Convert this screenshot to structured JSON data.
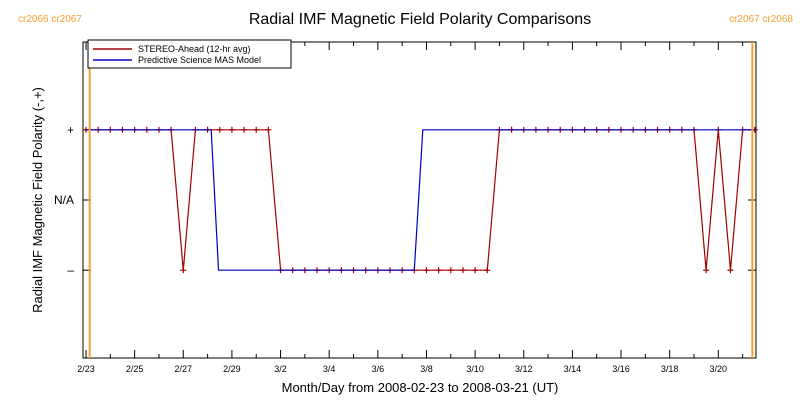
{
  "chart_data": {
    "type": "line",
    "title": "Radial IMF Magnetic Field Polarity Comparisons",
    "xlabel": "Month/Day from 2008-02-23 to 2008-03-21 (UT)",
    "ylabel": "Radial IMF Magnetic Field Polarity (-,+)",
    "x_start_date": "2008-02-23",
    "xlim_days": [
      0,
      27.55
    ],
    "ylim": [
      -2.25,
      2.25
    ],
    "x_ticks": [
      {
        "day": 0,
        "label": "2/23"
      },
      {
        "day": 2,
        "label": "2/25"
      },
      {
        "day": 4,
        "label": "2/27"
      },
      {
        "day": 6,
        "label": "2/29"
      },
      {
        "day": 8,
        "label": "3/2"
      },
      {
        "day": 10,
        "label": "3/4"
      },
      {
        "day": 12,
        "label": "3/6"
      },
      {
        "day": 14,
        "label": "3/8"
      },
      {
        "day": 16,
        "label": "3/10"
      },
      {
        "day": 18,
        "label": "3/12"
      },
      {
        "day": 20,
        "label": "3/14"
      },
      {
        "day": 22,
        "label": "3/16"
      },
      {
        "day": 24,
        "label": "3/18"
      },
      {
        "day": 26,
        "label": "3/20"
      }
    ],
    "y_ticks": [
      {
        "value": 1,
        "label": "+"
      },
      {
        "value": 0,
        "label": "N/A"
      },
      {
        "value": -1,
        "label": "–"
      }
    ],
    "carrington_markers": [
      {
        "day": 0.15,
        "label": "cr2066 cr2067",
        "side": "left",
        "color": "#f5a030"
      },
      {
        "day": 27.4,
        "label": "cr2067 cr2068",
        "side": "right",
        "color": "#f5a030"
      }
    ],
    "legend": {
      "position": "top-left",
      "entries": [
        {
          "name": "STEREO-Ahead (12-hr avg)",
          "color": "#a00000"
        },
        {
          "name": "Predictive Science MAS Model",
          "color": "#0000c8"
        }
      ]
    },
    "series": [
      {
        "name": "STEREO-Ahead (12-hr avg)",
        "color": "#a00000",
        "markers": true,
        "x": [
          0,
          0.5,
          1,
          1.5,
          2,
          2.5,
          3,
          3.5,
          4,
          4.5,
          5,
          5.5,
          6,
          6.5,
          7,
          7.5,
          8,
          8.5,
          9,
          9.5,
          10,
          10.5,
          11,
          11.5,
          12,
          12.5,
          13,
          13.5,
          14,
          14.5,
          15,
          15.5,
          16,
          16.5,
          17,
          17.5,
          18,
          18.5,
          19,
          19.5,
          20,
          20.5,
          21,
          21.5,
          22,
          22.5,
          23,
          23.5,
          24,
          24.5,
          25,
          25.5,
          26,
          26.5,
          27,
          27.5
        ],
        "y": [
          1,
          1,
          1,
          1,
          1,
          1,
          1,
          1,
          -1,
          1,
          1,
          1,
          1,
          1,
          1,
          1,
          -1,
          -1,
          -1,
          -1,
          -1,
          -1,
          -1,
          -1,
          -1,
          -1,
          -1,
          -1,
          -1,
          -1,
          -1,
          -1,
          -1,
          -1,
          1,
          1,
          1,
          1,
          1,
          1,
          1,
          1,
          1,
          1,
          1,
          1,
          1,
          1,
          1,
          1,
          1,
          -1,
          1,
          -1,
          1,
          1
        ]
      },
      {
        "name": "Predictive Science MAS Model",
        "color": "#0000c8",
        "markers": false,
        "x": [
          0,
          5.15,
          5.45,
          13.5,
          13.85,
          27.55
        ],
        "y": [
          1,
          1,
          -1,
          -1,
          1,
          1
        ]
      }
    ]
  }
}
